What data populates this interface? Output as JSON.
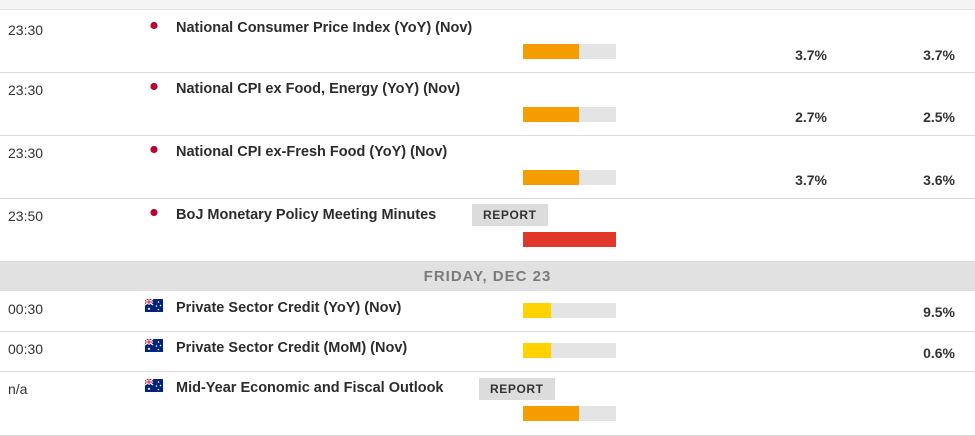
{
  "colors": {
    "impact_medium": "#f59d00",
    "impact_high": "#e0372a",
    "impact_low": "#ffd200",
    "impact_empty": "#e4e4e4"
  },
  "events_before": [
    {
      "time": "23:30",
      "flag": "japan-flag",
      "title": "National Consumer Price Index (YoY) (Nov)",
      "impact": 0.6,
      "impact_level": "medium",
      "forecast": "3.7%",
      "previous": "3.7%"
    },
    {
      "time": "23:30",
      "flag": "japan-flag",
      "title": "National CPI ex Food, Energy (YoY) (Nov)",
      "impact": 0.6,
      "impact_level": "medium",
      "forecast": "2.7%",
      "previous": "2.5%"
    },
    {
      "time": "23:30",
      "flag": "japan-flag",
      "title": "National CPI ex-Fresh Food (YoY) (Nov)",
      "impact": 0.6,
      "impact_level": "medium",
      "forecast": "3.7%",
      "previous": "3.6%"
    },
    {
      "time": "23:50",
      "flag": "japan-flag",
      "title": "BoJ Monetary Policy Meeting Minutes",
      "report": "REPORT",
      "impact": 1.0,
      "impact_level": "high"
    }
  ],
  "day_header": "FRIDAY, DEC 23",
  "events_after": [
    {
      "time": "00:30",
      "flag": "australia-flag",
      "title": "Private Sector Credit (YoY) (Nov)",
      "impact": 0.3,
      "impact_level": "low",
      "previous": "9.5%"
    },
    {
      "time": "00:30",
      "flag": "australia-flag",
      "title": "Private Sector Credit (MoM) (Nov)",
      "impact": 0.3,
      "impact_level": "low",
      "previous": "0.6%"
    },
    {
      "time": "n/a",
      "flag": "australia-flag",
      "title": "Mid-Year Economic and Fiscal Outlook",
      "report": "REPORT",
      "impact": 0.6,
      "impact_level": "medium"
    }
  ]
}
